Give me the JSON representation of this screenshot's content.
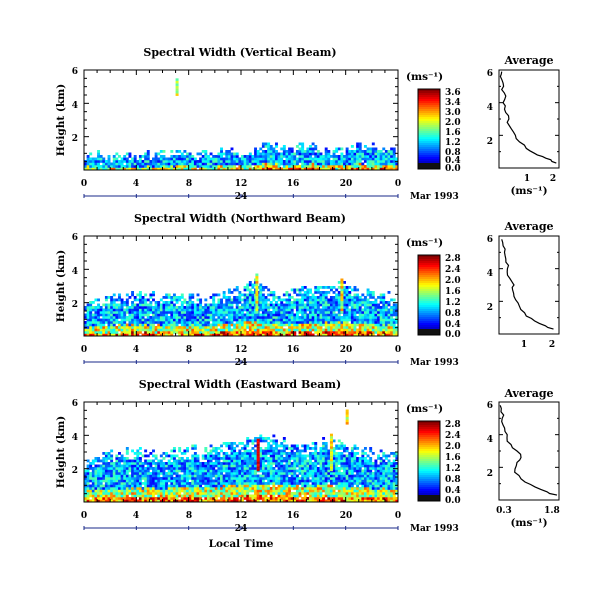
{
  "chart_data": [
    {
      "type": "heatmap",
      "title": "Spectral Width (Vertical Beam)",
      "ylabel": "Height (km)",
      "yticks": [
        "2",
        "4",
        "6"
      ],
      "ylim": [
        0,
        6
      ],
      "xticks": [
        "0",
        "4",
        "8",
        "12",
        "16",
        "20",
        "0"
      ],
      "xlim": [
        0,
        24
      ],
      "day_label": "24",
      "date_label": "Mar 1993",
      "colorbar": {
        "label": "(ms⁻¹)",
        "ticks": [
          "3.6",
          "3.4",
          "3.0",
          "2.0",
          "1.6",
          "1.2",
          "0.8",
          "0.4",
          "0.0"
        ],
        "range": [
          0,
          3.6
        ]
      },
      "echo_top_km": [
        1.0,
        0.9,
        0.9,
        0.8,
        0.8,
        1.0,
        0.9,
        1.0,
        1.1,
        1.0,
        1.0,
        1.2,
        1.0,
        1.3,
        1.5,
        1.4,
        1.3,
        1.4,
        1.3,
        1.4,
        1.3,
        1.5,
        1.4,
        1.4,
        1.3
      ],
      "average": {
        "title": "Average",
        "xlabel": "(ms⁻¹)",
        "xticks": [
          "1",
          "2"
        ],
        "xlim": [
          0,
          2.2
        ],
        "yticks": [
          "2",
          "4",
          "6"
        ],
        "ylim": [
          0,
          6
        ],
        "profile": [
          [
            2.1,
            0.3
          ],
          [
            1.9,
            0.5
          ],
          [
            1.6,
            0.7
          ],
          [
            1.3,
            0.9
          ],
          [
            1.0,
            1.2
          ],
          [
            0.75,
            1.6
          ],
          [
            0.6,
            2.0
          ],
          [
            0.45,
            2.4
          ],
          [
            0.3,
            2.8
          ],
          [
            0.35,
            3.2
          ],
          [
            0.2,
            3.6
          ],
          [
            0.15,
            4.0
          ],
          [
            0.25,
            4.4
          ],
          [
            0.1,
            4.8
          ],
          [
            0.15,
            5.2
          ],
          [
            0.05,
            5.6
          ],
          [
            0.1,
            5.9
          ]
        ]
      }
    },
    {
      "type": "heatmap",
      "title": "Spectral Width (Northward Beam)",
      "ylabel": "Height (km)",
      "yticks": [
        "2",
        "4",
        "6"
      ],
      "ylim": [
        0,
        6
      ],
      "xticks": [
        "0",
        "4",
        "8",
        "12",
        "16",
        "20",
        "0"
      ],
      "xlim": [
        0,
        24
      ],
      "day_label": "24",
      "date_label": "Mar 1993",
      "colorbar": {
        "label": "(ms⁻¹)",
        "ticks": [
          "2.8",
          "2.4",
          "2.0",
          "1.6",
          "1.2",
          "0.8",
          "0.4",
          "0.0"
        ],
        "range": [
          0,
          2.8
        ]
      },
      "echo_top_km": [
        1.9,
        2.1,
        2.3,
        2.4,
        2.5,
        2.5,
        2.4,
        2.3,
        2.4,
        2.3,
        2.4,
        2.6,
        2.8,
        3.4,
        2.7,
        2.5,
        2.9,
        2.8,
        3.0,
        2.9,
        3.2,
        2.6,
        2.5,
        2.4,
        2.4
      ],
      "average": {
        "title": "Average",
        "xlabel": "",
        "xticks": [
          "1",
          "2"
        ],
        "xlim": [
          0,
          2.2
        ],
        "yticks": [
          "2",
          "4",
          "6"
        ],
        "ylim": [
          0,
          6
        ],
        "profile": [
          [
            2.0,
            0.3
          ],
          [
            1.7,
            0.5
          ],
          [
            1.3,
            0.8
          ],
          [
            1.0,
            1.1
          ],
          [
            0.8,
            1.5
          ],
          [
            0.7,
            1.9
          ],
          [
            0.55,
            2.3
          ],
          [
            0.5,
            2.7
          ],
          [
            0.55,
            3.0
          ],
          [
            0.4,
            3.4
          ],
          [
            0.3,
            3.8
          ],
          [
            0.35,
            4.2
          ],
          [
            0.25,
            4.6
          ],
          [
            0.2,
            5.0
          ],
          [
            0.15,
            5.4
          ],
          [
            0.1,
            5.8
          ]
        ]
      }
    },
    {
      "type": "heatmap",
      "title": "Spectral Width (Eastward Beam)",
      "ylabel": "Height (km)",
      "yticks": [
        "2",
        "4",
        "6"
      ],
      "ylim": [
        0,
        6
      ],
      "xticks": [
        "0",
        "4",
        "8",
        "12",
        "16",
        "20",
        "0"
      ],
      "xlim": [
        0,
        24
      ],
      "day_label": "24",
      "date_label": "Mar 1993",
      "xlabel": "Local Time",
      "colorbar": {
        "label": "(ms⁻¹)",
        "ticks": [
          "2.8",
          "2.4",
          "2.0",
          "1.6",
          "1.2",
          "0.8",
          "0.4",
          "0.0"
        ],
        "range": [
          0,
          2.8
        ]
      },
      "echo_top_km": [
        2.4,
        2.7,
        2.9,
        3.0,
        3.1,
        3.0,
        2.9,
        3.2,
        3.3,
        3.1,
        3.5,
        3.4,
        3.6,
        3.8,
        3.9,
        3.8,
        3.6,
        3.5,
        3.7,
        3.6,
        3.4,
        3.2,
        3.0,
        2.9,
        2.8
      ],
      "average": {
        "title": "Average",
        "xlabel": "(ms⁻¹)",
        "xticks": [
          "0.3",
          "1.8"
        ],
        "xlim": [
          0.3,
          1.8
        ],
        "yticks": [
          "2",
          "4",
          "6"
        ],
        "ylim": [
          0,
          6
        ],
        "profile": [
          [
            1.75,
            0.3
          ],
          [
            1.5,
            0.5
          ],
          [
            1.2,
            0.8
          ],
          [
            0.95,
            1.1
          ],
          [
            0.8,
            1.5
          ],
          [
            0.7,
            1.9
          ],
          [
            0.75,
            2.3
          ],
          [
            0.85,
            2.6
          ],
          [
            0.75,
            3.0
          ],
          [
            0.6,
            3.4
          ],
          [
            0.5,
            3.8
          ],
          [
            0.45,
            4.2
          ],
          [
            0.4,
            4.6
          ],
          [
            0.38,
            5.0
          ],
          [
            0.35,
            5.4
          ],
          [
            0.33,
            5.8
          ]
        ]
      }
    }
  ]
}
